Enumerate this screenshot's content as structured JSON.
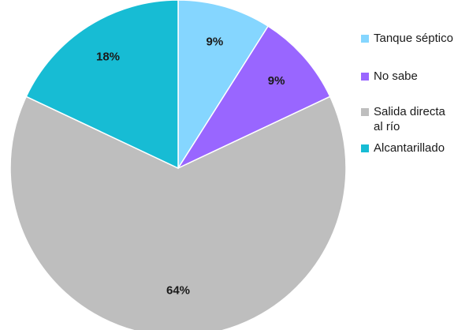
{
  "chart_data": {
    "type": "pie",
    "title": "",
    "categories": [
      "Tanque séptico",
      "No sabe",
      "Salida directa al río",
      "Alcantarillado"
    ],
    "values": [
      9,
      9,
      64,
      18
    ],
    "data_labels": [
      "9%",
      "9%",
      "64%",
      "18%"
    ],
    "colors": [
      "#85D6FF",
      "#9966FF",
      "#BEBEBE",
      "#17BCD4"
    ],
    "legend_position": "right",
    "legend_lines": [
      [
        "Tanque séptico"
      ],
      [
        "No sabe"
      ],
      [
        "Salida directa",
        "al río"
      ],
      [
        "Alcantarillado"
      ]
    ]
  }
}
